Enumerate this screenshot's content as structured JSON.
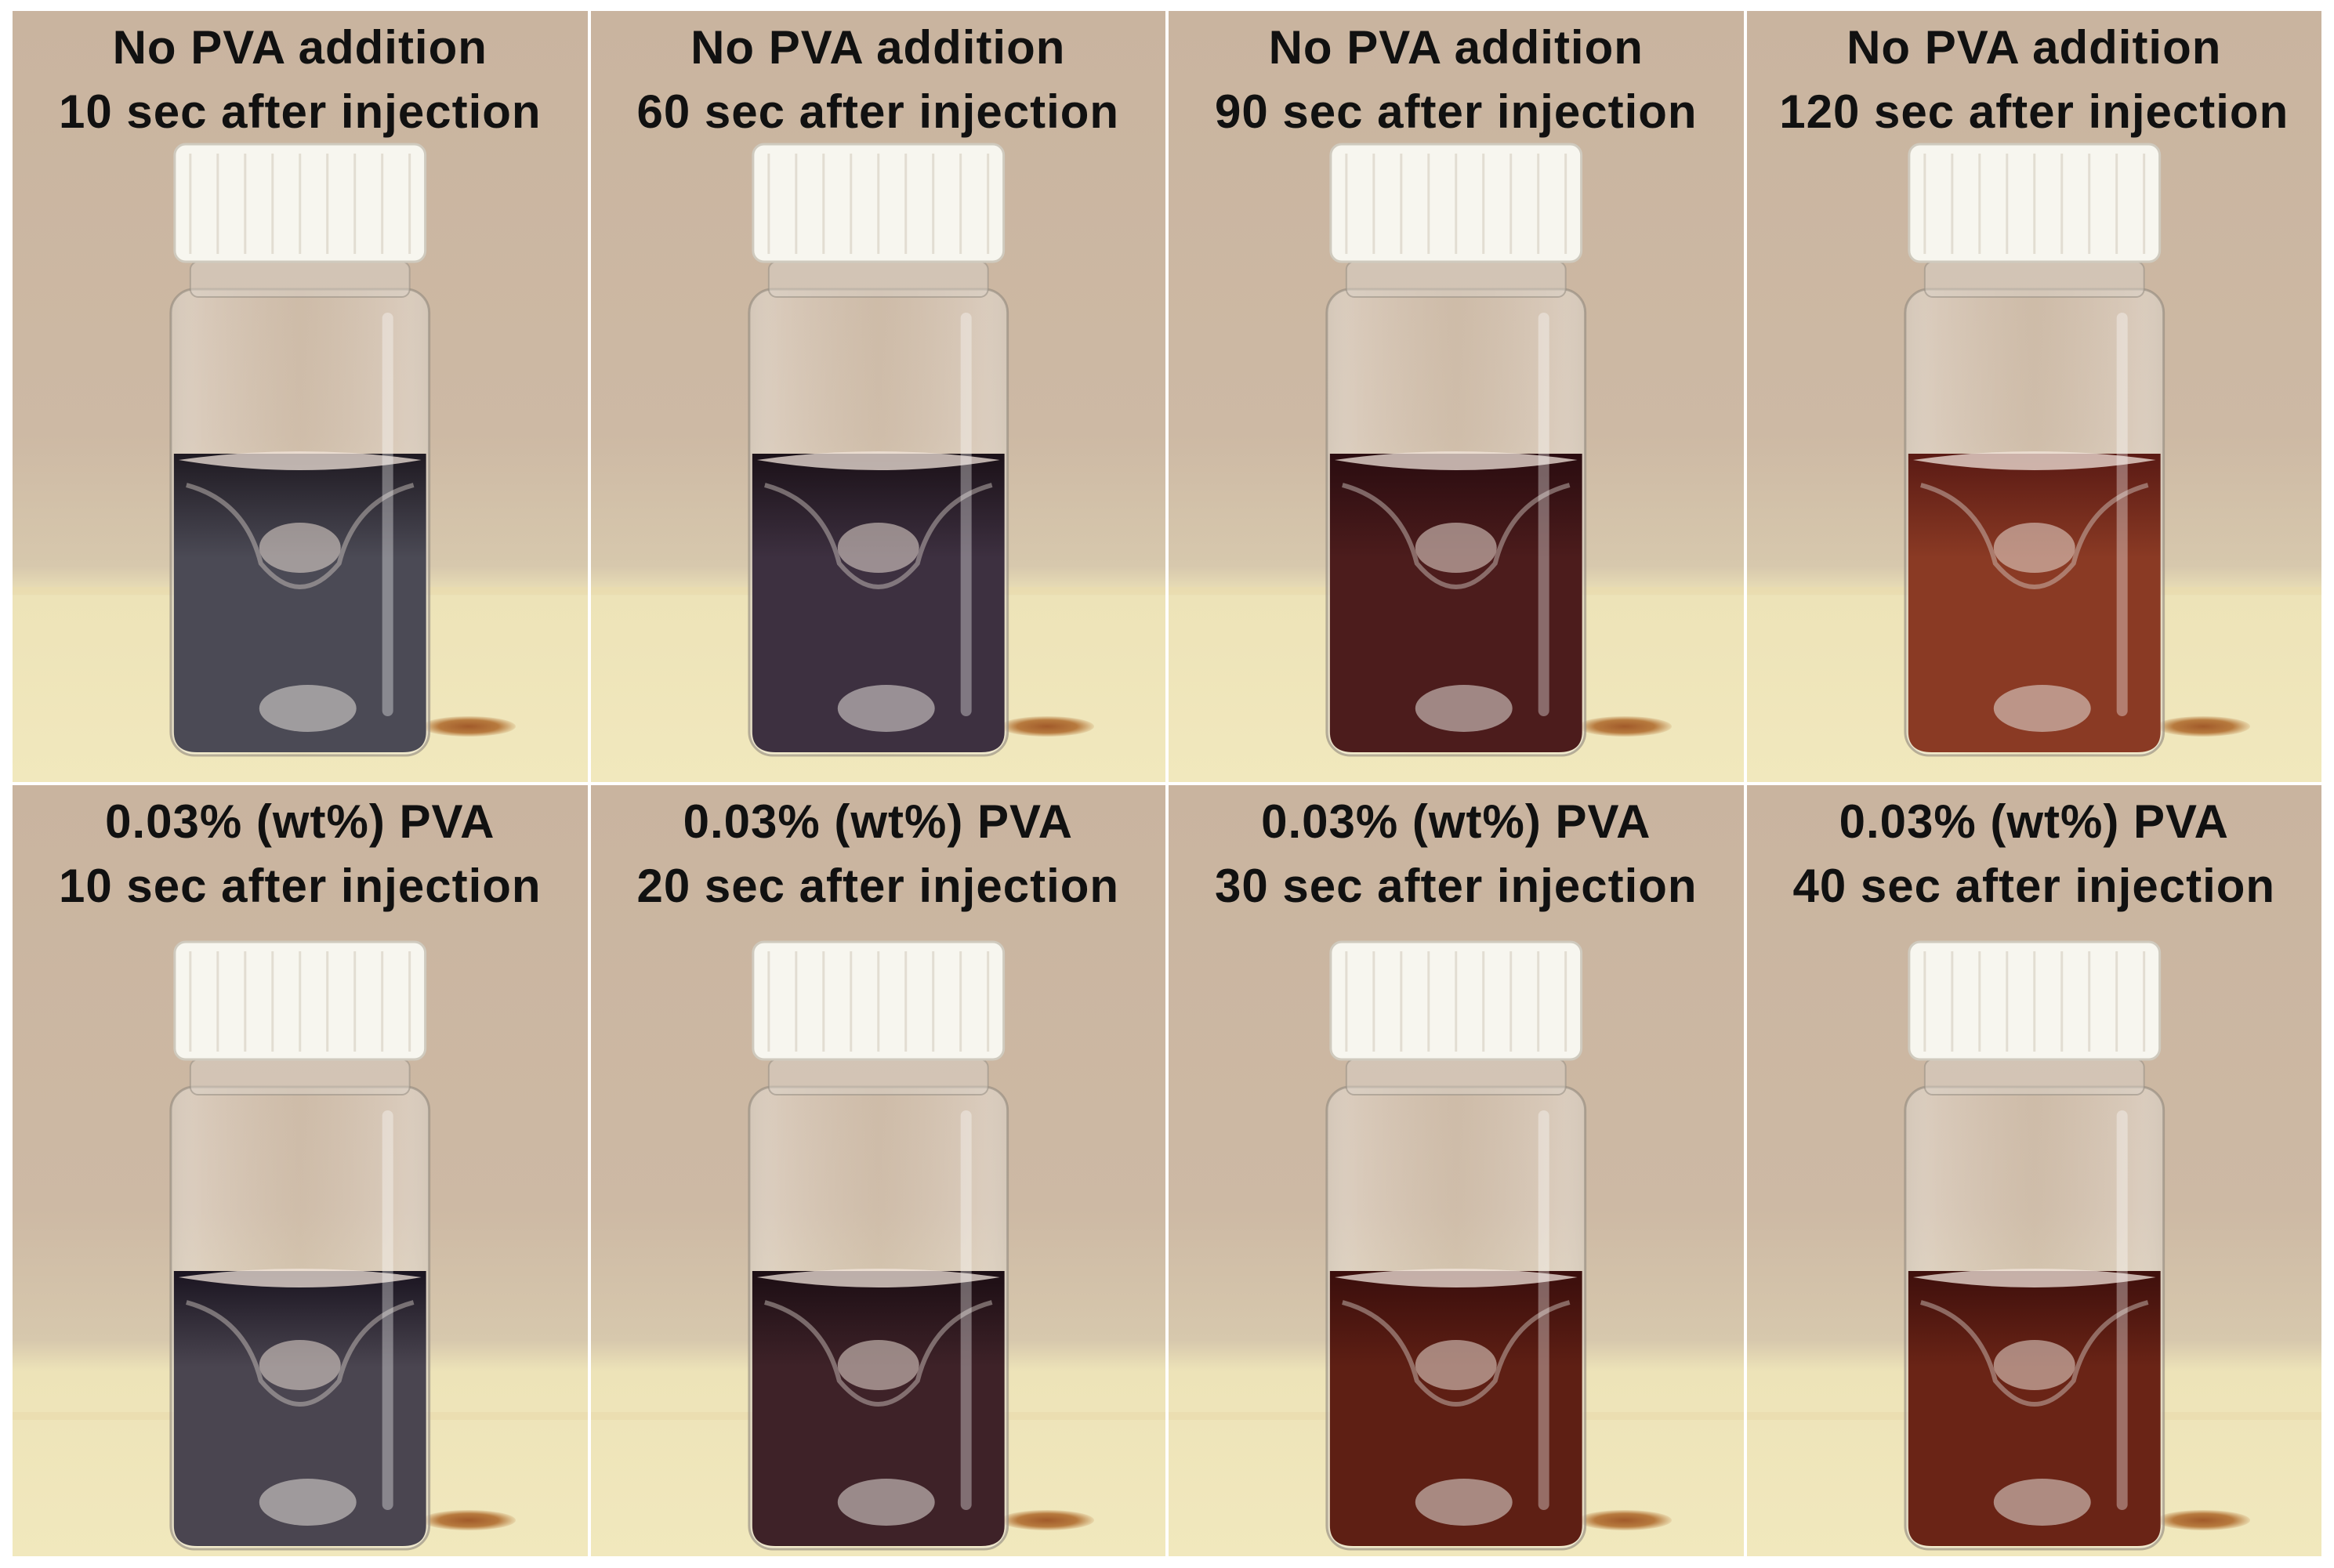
{
  "figure": {
    "panels": [
      {
        "line1": "No PVA addition",
        "line2": "10 sec after injection",
        "liquid_color": "#4b4a55",
        "top_color": "#1f1a22",
        "row": "top"
      },
      {
        "line1": "No PVA addition",
        "line2": "60 sec after injection",
        "liquid_color": "#3d3040",
        "top_color": "#1b1118",
        "row": "top"
      },
      {
        "line1": "No PVA addition",
        "line2": "90 sec after injection",
        "liquid_color": "#4c1c1c",
        "top_color": "#2a0c10",
        "row": "top"
      },
      {
        "line1": "No PVA addition",
        "line2": "120 sec after injection",
        "liquid_color": "#8a3a24",
        "top_color": "#5a1a14",
        "row": "top"
      },
      {
        "line1": "0.03% (wt%) PVA",
        "line2": "10 sec after injection",
        "liquid_color": "#4a4550",
        "top_color": "#1a1420",
        "row": "bottom"
      },
      {
        "line1": "0.03% (wt%) PVA",
        "line2": "20 sec after injection",
        "liquid_color": "#3e2228",
        "top_color": "#1c0e14",
        "row": "bottom"
      },
      {
        "line1": "0.03% (wt%) PVA",
        "line2": "30 sec after injection",
        "liquid_color": "#5e1f14",
        "top_color": "#3a0e0c",
        "row": "bottom"
      },
      {
        "line1": "0.03% (wt%) PVA",
        "line2": "40 sec after injection",
        "liquid_color": "#6a2416",
        "top_color": "#3e0f0c",
        "row": "bottom"
      }
    ],
    "cap_color": "#f7f6ef",
    "glass_color": "#d9d2c8",
    "stir_bar_color": "#e6e0da"
  }
}
